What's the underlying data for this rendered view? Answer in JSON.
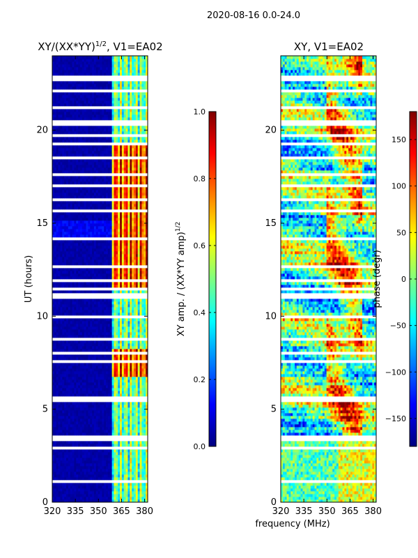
{
  "figure": {
    "suptitle": "2020-08-16 0.0-24.0",
    "xlabel": "frequency (MHz)"
  },
  "colors": {
    "jet": [
      "#00007f",
      "#0000ff",
      "#007fff",
      "#00ffff",
      "#7fff7f",
      "#ffff00",
      "#ff7f00",
      "#ff0000",
      "#7f0000"
    ],
    "background": "#ffffff",
    "axis": "#000000"
  },
  "chart_data": [
    {
      "type": "heatmap",
      "title": "XY/(XX*YY)^{1/2}, V1=EA02",
      "title_main": "XY/(XX*YY)",
      "title_sup": "1/2",
      "title_tail": ", V1=EA02",
      "xlabel": "",
      "ylabel": "UT (hours)",
      "xlim": [
        320,
        382
      ],
      "ylim": [
        0,
        24
      ],
      "xticks": [
        320,
        335,
        350,
        365,
        380
      ],
      "yticks": [
        0,
        5,
        10,
        15,
        20
      ],
      "colorbar": {
        "label": "XY amp. / (XX*YY amp)^{1/2}",
        "label_main": "XY amp. / (XX*YY amp)",
        "label_sup": "1/2",
        "range": [
          0.0,
          1.0
        ],
        "ticks": [
          "0.0",
          "0.2",
          "0.4",
          "0.6",
          "0.8",
          "1.0"
        ]
      },
      "description": "Normalized XY amplitude is near 0 for 320-359 MHz; channels 359-382 MHz show values 0.3-1.0, highest (0.8-1.0) between UT 11.5-19 h and near 7-8 h."
    },
    {
      "type": "heatmap",
      "title": "XY, V1=EA02",
      "xlabel": "",
      "ylabel": "",
      "xlim": [
        320,
        382
      ],
      "ylim": [
        0,
        24
      ],
      "xticks": [
        320,
        335,
        350,
        365,
        380
      ],
      "yticks": [
        0,
        5,
        10,
        15,
        20
      ],
      "colorbar": {
        "label": "phase (degr)",
        "range": [
          -180,
          180
        ],
        "ticks": [
          "−150",
          "−100",
          "−50",
          "0",
          "50",
          "100",
          "150"
        ]
      },
      "description": "XY phase varies across the full range, warm (phase 100-180 deg) mostly at 352-372 MHz, cool (-150 to 0 deg) elsewhere."
    }
  ]
}
